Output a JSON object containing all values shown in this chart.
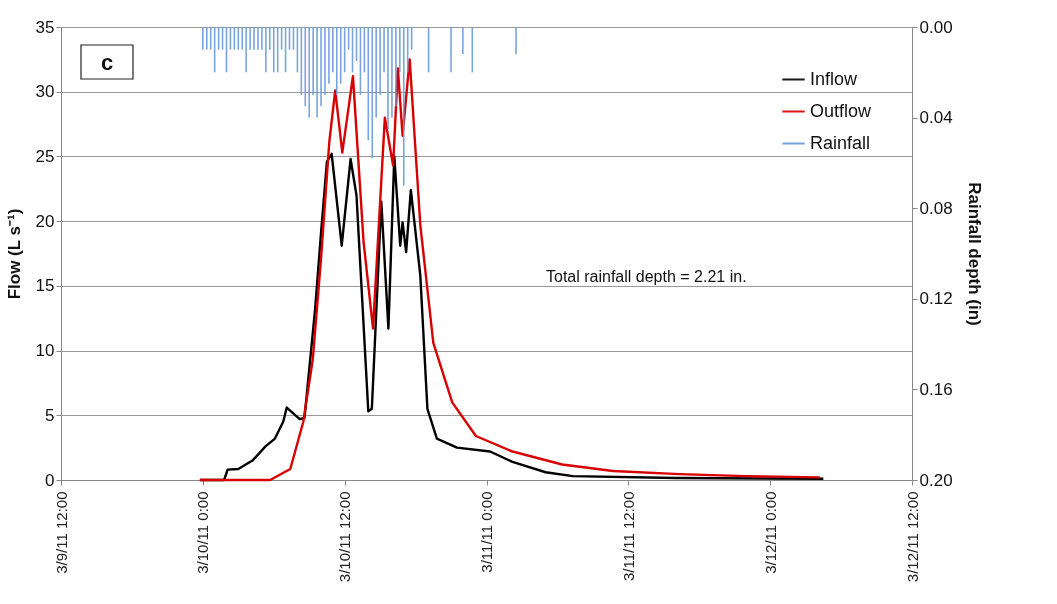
{
  "chart_data": {
    "type": "line",
    "ylabel": "Flow (L s⁻¹)",
    "y2label": "Rainfall depth (in)",
    "annotations": [
      "c",
      "Total rainfall depth = 2.21 in."
    ],
    "xlim": [
      "--03-09T12:00",
      "--03-12T12:00"
    ],
    "xticks": [
      {
        "value": "--03-09T12:00",
        "label": "3/9/11 12:00"
      },
      {
        "value": "--03-10T00:00",
        "label": "3/10/11 0:00"
      },
      {
        "value": "--03-10T12:00",
        "label": "3/10/11 12:00"
      },
      {
        "value": "--03-11T00:00",
        "label": "3/11/11 0:00"
      },
      {
        "value": "--03-11T12:00",
        "label": "3/11/11 12:00"
      },
      {
        "value": "--03-12T00:00",
        "label": "3/12/11 0:00"
      },
      {
        "value": "--03-12T12:00",
        "label": "3/12/11 12:00"
      }
    ],
    "ylim": [
      0,
      35
    ],
    "yticks": [
      0,
      5,
      10,
      15,
      20,
      25,
      30,
      35
    ],
    "y2lim": [
      0.2,
      0
    ],
    "y2ticks": [
      {
        "value": 0,
        "label": "0.00"
      },
      {
        "value": 0.04,
        "label": "0.04"
      },
      {
        "value": 0.08,
        "label": "0.08"
      },
      {
        "value": 0.12,
        "label": "0.12"
      },
      {
        "value": 0.16,
        "label": "0.16"
      },
      {
        "value": 0.2,
        "label": "0.20"
      }
    ],
    "grid": "y",
    "legend": "top right",
    "marker": "none",
    "series": [
      {
        "name": "Inflow",
        "color": "#000000",
        "x": [
          "--03-09T23:45",
          "--03-10T01:48",
          "--03-10T02:06",
          "--03-10T03:00",
          "--03-10T04:12",
          "--03-10T05:18",
          "--03-10T06:06",
          "--03-10T06:48",
          "--03-10T07:06",
          "--03-10T08:12",
          "--03-10T08:36",
          "--03-10T09:30",
          "--03-10T10:00",
          "--03-10T10:30",
          "--03-10T10:54",
          "--03-10T11:45",
          "--03-10T12:30",
          "--03-10T13:00",
          "--03-10T14:00",
          "--03-10T14:18",
          "--03-10T15:06",
          "--03-10T15:42",
          "--03-10T16:12",
          "--03-10T16:42",
          "--03-10T16:54",
          "--03-10T17:12",
          "--03-10T17:36",
          "--03-10T18:24",
          "--03-10T19:00",
          "--03-10T19:48",
          "--03-10T21:30",
          "--03-11T00:18",
          "--03-11T02:12",
          "--03-11T05:00",
          "--03-11T07:18",
          "--03-11T16:00",
          "--03-12T04:30"
        ],
        "values": [
          0,
          0,
          0.8,
          0.85,
          1.5,
          2.6,
          3.2,
          4.5,
          5.6,
          4.7,
          4.8,
          13.2,
          19.1,
          24.6,
          25.2,
          18.1,
          24.8,
          22.0,
          5.3,
          5.5,
          21.5,
          11.7,
          25.0,
          18.1,
          19.9,
          17.6,
          22.4,
          15.8,
          5.5,
          3.2,
          2.5,
          2.2,
          1.4,
          0.6,
          0.3,
          0.15,
          0.1
        ]
      },
      {
        "name": "Outflow",
        "color": "#d80000",
        "x": [
          "--03-09T23:45",
          "--03-10T05:42",
          "--03-10T07:24",
          "--03-10T08:30",
          "--03-10T09:18",
          "--03-10T10:00",
          "--03-10T10:42",
          "--03-10T11:12",
          "--03-10T11:48",
          "--03-10T12:42",
          "--03-10T13:36",
          "--03-10T14:24",
          "--03-10T15:24",
          "--03-10T16:06",
          "--03-10T16:30",
          "--03-10T16:54",
          "--03-10T17:30",
          "--03-10T18:24",
          "--03-10T19:30",
          "--03-10T21:06",
          "--03-10T23:06",
          "--03-11T02:12",
          "--03-11T06:24",
          "--03-11T10:42",
          "--03-11T16:18",
          "--03-11T21:54",
          "--03-12T04:12"
        ],
        "values": [
          0,
          0,
          0.85,
          4.5,
          9.3,
          17.1,
          26.1,
          30.1,
          25.3,
          31.2,
          18.4,
          11.7,
          28.0,
          24.3,
          31.8,
          26.6,
          32.5,
          19.7,
          10.6,
          6.0,
          3.4,
          2.2,
          1.2,
          0.7,
          0.45,
          0.3,
          0.2
        ]
      },
      {
        "name": "Rainfall",
        "type": "bar",
        "axis": "y2",
        "color": "#6a9ad8",
        "x": [
          "--03-10T00:00",
          "--03-10T00:20",
          "--03-10T00:40",
          "--03-10T01:00",
          "--03-10T01:20",
          "--03-10T01:40",
          "--03-10T02:00",
          "--03-10T02:20",
          "--03-10T02:40",
          "--03-10T03:00",
          "--03-10T03:20",
          "--03-10T03:40",
          "--03-10T04:00",
          "--03-10T04:20",
          "--03-10T04:40",
          "--03-10T05:00",
          "--03-10T05:20",
          "--03-10T05:40",
          "--03-10T06:00",
          "--03-10T06:20",
          "--03-10T06:40",
          "--03-10T07:00",
          "--03-10T07:20",
          "--03-10T07:40",
          "--03-10T08:00",
          "--03-10T08:20",
          "--03-10T08:40",
          "--03-10T09:00",
          "--03-10T09:20",
          "--03-10T09:40",
          "--03-10T10:00",
          "--03-10T10:20",
          "--03-10T10:40",
          "--03-10T11:00",
          "--03-10T11:20",
          "--03-10T11:40",
          "--03-10T12:00",
          "--03-10T12:20",
          "--03-10T12:40",
          "--03-10T13:00",
          "--03-10T13:20",
          "--03-10T13:40",
          "--03-10T14:00",
          "--03-10T14:20",
          "--03-10T14:40",
          "--03-10T15:00",
          "--03-10T15:20",
          "--03-10T15:40",
          "--03-10T16:00",
          "--03-10T16:20",
          "--03-10T16:40",
          "--03-10T17:00",
          "--03-10T17:20",
          "--03-10T17:40",
          "--03-10T19:06",
          "--03-10T21:00",
          "--03-10T22:00",
          "--03-10T22:48",
          "--03-11T02:30"
        ],
        "values": [
          0.01,
          0.01,
          0.01,
          0.02,
          0.01,
          0.01,
          0.02,
          0.01,
          0.01,
          0.01,
          0.01,
          0.02,
          0.01,
          0.01,
          0.01,
          0.01,
          0.02,
          0.01,
          0.02,
          0.02,
          0.01,
          0.02,
          0.01,
          0.01,
          0.02,
          0.03,
          0.035,
          0.04,
          0.03,
          0.04,
          0.035,
          0.03,
          0.025,
          0.02,
          0.03,
          0.025,
          0.02,
          0.01,
          0.02,
          0.015,
          0.03,
          0.02,
          0.05,
          0.058,
          0.04,
          0.03,
          0.02,
          0.045,
          0.04,
          0.035,
          0.02,
          0.07,
          0.02,
          0.01,
          0.02,
          0.02,
          0.012,
          0.02,
          0.012
        ]
      }
    ]
  }
}
